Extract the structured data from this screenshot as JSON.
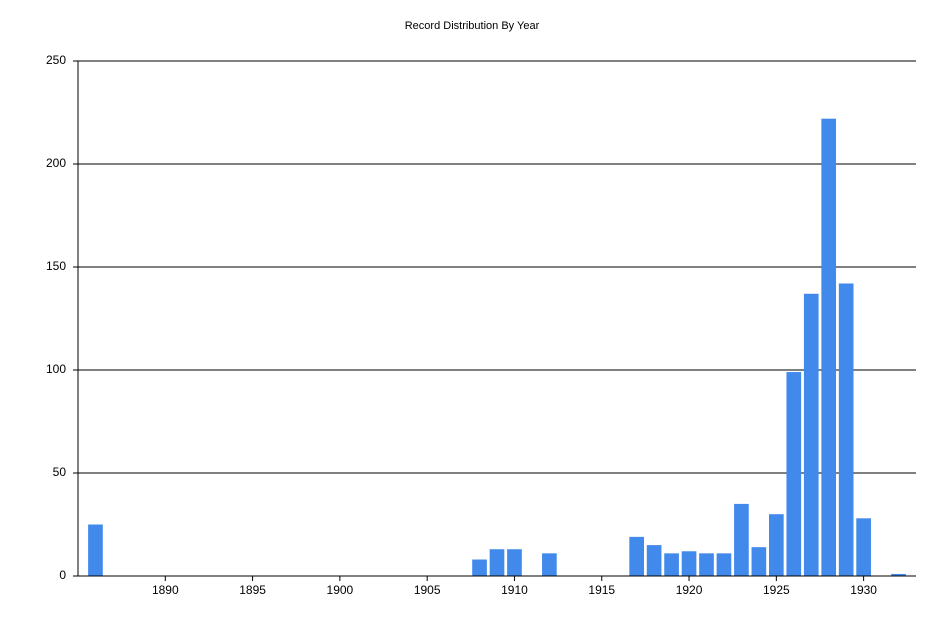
{
  "chart_data": {
    "type": "bar",
    "title": "Record Distribution By Year",
    "x": [
      1886,
      1908,
      1909,
      1910,
      1912,
      1917,
      1918,
      1919,
      1920,
      1921,
      1922,
      1923,
      1924,
      1925,
      1926,
      1927,
      1928,
      1929,
      1930,
      1932
    ],
    "values": [
      25,
      8,
      13,
      13,
      11,
      19,
      15,
      11,
      12,
      11,
      11,
      35,
      14,
      30,
      99,
      137,
      222,
      142,
      28,
      1
    ],
    "color": "#4189ea",
    "xlim": [
      1885,
      1933
    ],
    "xticks": [
      1890,
      1895,
      1900,
      1905,
      1910,
      1915,
      1920,
      1925,
      1930
    ],
    "ylim": [
      0,
      250
    ],
    "yticks": [
      0,
      50,
      100,
      150,
      200,
      250
    ],
    "grid": true
  }
}
